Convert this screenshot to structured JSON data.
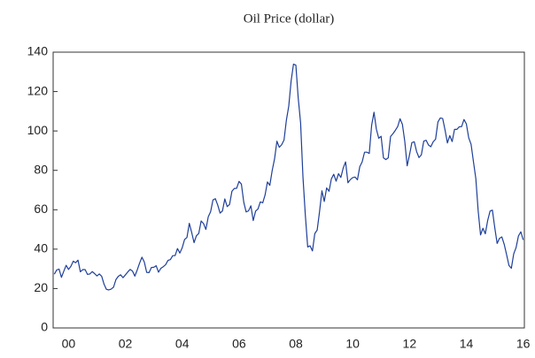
{
  "chart_data": {
    "type": "line",
    "title": "Oil Price (dollar)",
    "categories": [
      null,
      null,
      null,
      null,
      null,
      null,
      "00",
      null,
      null,
      null,
      null,
      null,
      null,
      null,
      null,
      null,
      null,
      null,
      null,
      null,
      null,
      null,
      null,
      null,
      null,
      null,
      null,
      null,
      null,
      null,
      "02",
      null,
      null,
      null,
      null,
      null,
      null,
      null,
      null,
      null,
      null,
      null,
      null,
      null,
      null,
      null,
      null,
      null,
      null,
      null,
      null,
      null,
      null,
      null,
      "04",
      null,
      null,
      null,
      null,
      null,
      null,
      null,
      null,
      null,
      null,
      null,
      null,
      null,
      null,
      null,
      null,
      null,
      null,
      null,
      null,
      null,
      null,
      null,
      "06",
      null,
      null,
      null,
      null,
      null,
      null,
      null,
      null,
      null,
      null,
      null,
      null,
      null,
      null,
      null,
      null,
      null,
      null,
      null,
      null,
      null,
      null,
      null,
      "08",
      null,
      null,
      null,
      null,
      null,
      null,
      null,
      null,
      null,
      null,
      null,
      null,
      null,
      null,
      null,
      null,
      null,
      null,
      null,
      null,
      null,
      null,
      null,
      "10",
      null,
      null,
      null,
      null,
      null,
      null,
      null,
      null,
      null,
      null,
      null,
      null,
      null,
      null,
      null,
      null,
      null,
      null,
      null,
      null,
      null,
      null,
      null,
      "12",
      null,
      null,
      null,
      null,
      null,
      null,
      null,
      null,
      null,
      null,
      null,
      null,
      null,
      null,
      null,
      null,
      null,
      null,
      null,
      null,
      null,
      null,
      null,
      "14",
      null,
      null,
      null,
      null,
      null,
      null,
      null,
      null,
      null,
      null,
      null,
      null,
      null,
      null,
      null,
      null,
      null,
      null,
      null,
      null,
      null,
      null,
      null,
      "16"
    ],
    "series": [
      {
        "color": "#1f3f99",
        "values": [
          27.3,
          29.4,
          29.9,
          25.7,
          28.8,
          31.8,
          29.7,
          31.3,
          33.9,
          33.1,
          34.4,
          28.5,
          29.6,
          29.6,
          27.2,
          27.4,
          28.6,
          27.6,
          26.4,
          27.4,
          26.2,
          22.2,
          19.6,
          19.3,
          19.7,
          20.7,
          24.5,
          26.2,
          27.0,
          25.5,
          26.9,
          28.4,
          29.7,
          28.9,
          26.3,
          29.4,
          32.9,
          35.9,
          33.5,
          28.2,
          28.1,
          30.7,
          30.8,
          31.6,
          28.3,
          30.3,
          31.1,
          32.1,
          34.3,
          34.7,
          36.7,
          36.7,
          40.3,
          38.0,
          40.7,
          44.9,
          45.9,
          53.1,
          48.5,
          43.3,
          46.8,
          48.0,
          54.3,
          53.0,
          50.0,
          56.4,
          59.0,
          65.0,
          65.6,
          62.4,
          58.3,
          59.4,
          65.5,
          61.6,
          62.7,
          69.4,
          70.8,
          70.9,
          74.4,
          73.0,
          63.8,
          58.9,
          59.4,
          62.0,
          54.5,
          59.3,
          60.4,
          64.0,
          63.5,
          67.5,
          74.1,
          72.4,
          79.9,
          85.8,
          94.8,
          91.7,
          93.0,
          95.4,
          105.5,
          112.6,
          125.4,
          133.9,
          133.4,
          116.7,
          104.1,
          76.6,
          57.3,
          41.1,
          41.7,
          39.1,
          47.9,
          49.7,
          59.0,
          69.6,
          64.2,
          71.1,
          69.4,
          75.7,
          78.0,
          74.5,
          78.3,
          76.4,
          81.2,
          84.3,
          73.7,
          75.3,
          76.3,
          76.6,
          75.2,
          81.9,
          84.3,
          89.2,
          89.2,
          88.6,
          102.9,
          109.5,
          100.9,
          96.3,
          97.3,
          86.3,
          85.5,
          86.3,
          97.2,
          98.6,
          100.3,
          102.2,
          106.2,
          103.3,
          94.7,
          82.3,
          87.9,
          94.1,
          94.5,
          89.5,
          86.5,
          87.9,
          94.8,
          95.3,
          92.9,
          92.0,
          94.5,
          95.8,
          104.6,
          106.6,
          106.3,
          100.5,
          93.9,
          97.6,
          94.6,
          100.8,
          100.8,
          102.1,
          102.2,
          105.8,
          103.6,
          96.5,
          93.2,
          84.4,
          75.8,
          59.3,
          47.2,
          50.6,
          47.8,
          54.5,
          59.3,
          59.8,
          50.9,
          42.9,
          45.5,
          46.2,
          42.4,
          37.2,
          31.7,
          30.3,
          37.6,
          40.8,
          46.7,
          48.8,
          44.7
        ]
      }
    ],
    "ylim": [
      0,
      140
    ],
    "yticks": [
      0,
      20,
      40,
      60,
      80,
      100,
      120,
      140
    ]
  }
}
